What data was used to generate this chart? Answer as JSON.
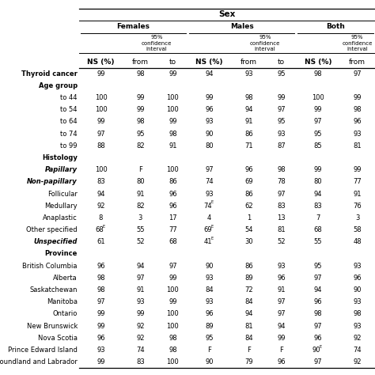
{
  "title": "Sex",
  "col_groups": [
    "Females",
    "Males",
    "Both"
  ],
  "col_labels": [
    "NS (%)",
    "from",
    "to",
    "NS (%)",
    "from",
    "to",
    "NS (%)",
    "from"
  ],
  "row_labels": [
    [
      "Thyroid cancer",
      "bold",
      "normal"
    ],
    [
      "Age group",
      "bold",
      "normal"
    ],
    [
      "to 44",
      "normal",
      "normal"
    ],
    [
      "to 54",
      "normal",
      "normal"
    ],
    [
      "to 64",
      "normal",
      "normal"
    ],
    [
      "to 74",
      "normal",
      "normal"
    ],
    [
      "to 99",
      "normal",
      "normal"
    ],
    [
      "Histology",
      "bold",
      "normal"
    ],
    [
      "Papillary",
      "bold",
      "italic"
    ],
    [
      "Non-papillary",
      "bold",
      "italic"
    ],
    [
      "Follicular",
      "normal",
      "normal"
    ],
    [
      "Medullary",
      "normal",
      "normal"
    ],
    [
      "Anaplastic",
      "normal",
      "normal"
    ],
    [
      "Other specified",
      "normal",
      "normal"
    ],
    [
      "Unspecified",
      "bold",
      "italic"
    ],
    [
      "Province",
      "bold",
      "normal"
    ],
    [
      "British Columbia",
      "normal",
      "normal"
    ],
    [
      "Alberta",
      "normal",
      "normal"
    ],
    [
      "Saskatchewan",
      "normal",
      "normal"
    ],
    [
      "Manitoba",
      "normal",
      "normal"
    ],
    [
      "Ontario",
      "normal",
      "normal"
    ],
    [
      "New Brunswick",
      "normal",
      "normal"
    ],
    [
      "Nova Scotia",
      "normal",
      "normal"
    ],
    [
      "Prince Edward Island",
      "normal",
      "normal"
    ],
    [
      "Newfoundland and Labrador",
      "normal",
      "normal"
    ]
  ],
  "section_rows": [
    1,
    7,
    15
  ],
  "data": [
    [
      "99",
      "98",
      "99",
      "94",
      "93",
      "95",
      "98",
      "97"
    ],
    [
      "",
      "",
      "",
      "",
      "",
      "",
      "",
      ""
    ],
    [
      "100",
      "99",
      "100",
      "99",
      "98",
      "99",
      "100",
      "99"
    ],
    [
      "100",
      "99",
      "100",
      "96",
      "94",
      "97",
      "99",
      "98"
    ],
    [
      "99",
      "98",
      "99",
      "93",
      "91",
      "95",
      "97",
      "96"
    ],
    [
      "97",
      "95",
      "98",
      "90",
      "86",
      "93",
      "95",
      "93"
    ],
    [
      "88",
      "82",
      "91",
      "80",
      "71",
      "87",
      "85",
      "81"
    ],
    [
      "",
      "",
      "",
      "",
      "",
      "",
      "",
      ""
    ],
    [
      "100",
      "F",
      "100",
      "97",
      "96",
      "98",
      "99",
      "99"
    ],
    [
      "83",
      "80",
      "86",
      "74",
      "69",
      "78",
      "80",
      "77"
    ],
    [
      "94",
      "91",
      "96",
      "93",
      "86",
      "97",
      "94",
      "91"
    ],
    [
      "92",
      "82",
      "96",
      "74E",
      "62",
      "83",
      "83",
      "76"
    ],
    [
      "8",
      "3",
      "17",
      "4",
      "1",
      "13",
      "7",
      "3"
    ],
    [
      "68E",
      "55",
      "77",
      "69E",
      "54",
      "81",
      "68",
      "58"
    ],
    [
      "61",
      "52",
      "68",
      "41E",
      "30",
      "52",
      "55",
      "48"
    ],
    [
      "",
      "",
      "",
      "",
      "",
      "",
      "",
      ""
    ],
    [
      "96",
      "94",
      "97",
      "90",
      "86",
      "93",
      "95",
      "93"
    ],
    [
      "98",
      "97",
      "99",
      "93",
      "89",
      "96",
      "97",
      "96"
    ],
    [
      "98",
      "91",
      "100",
      "84",
      "72",
      "91",
      "94",
      "90"
    ],
    [
      "97",
      "93",
      "99",
      "93",
      "84",
      "97",
      "96",
      "93"
    ],
    [
      "99",
      "99",
      "100",
      "96",
      "94",
      "97",
      "98",
      "98"
    ],
    [
      "99",
      "92",
      "100",
      "89",
      "81",
      "94",
      "97",
      "93"
    ],
    [
      "96",
      "92",
      "98",
      "95",
      "84",
      "99",
      "96",
      "92"
    ],
    [
      "93",
      "74",
      "98",
      "F",
      "F",
      "F",
      "90E",
      "74"
    ],
    [
      "99",
      "83",
      "100",
      "90",
      "79",
      "96",
      "97",
      "92"
    ]
  ],
  "bg_color": "white",
  "line_color": "black",
  "text_color": "black",
  "font_size_header": 6.5,
  "font_size_data": 6.0,
  "font_size_title": 7.5
}
